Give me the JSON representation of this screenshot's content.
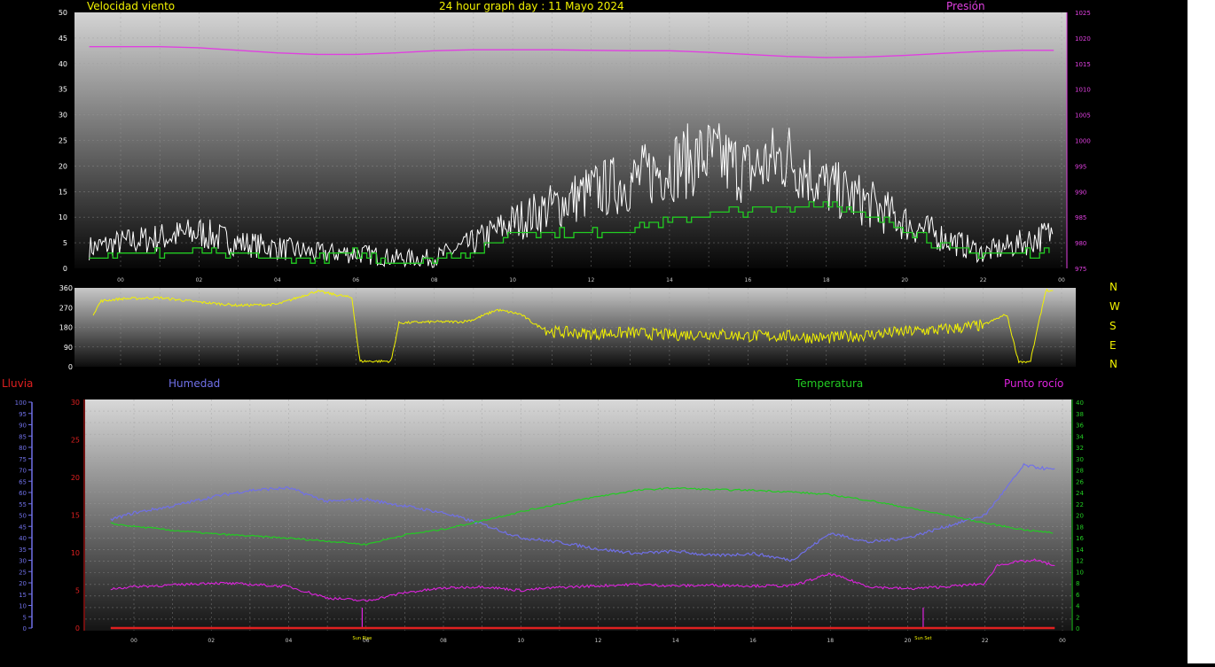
{
  "header": {
    "wind_title": "Velocidad viento",
    "graph_title": "24 hour graph day : 11 Mayo 2024",
    "pressure_title": "Presión"
  },
  "lower_header": {
    "rain_label": "Lluvia",
    "humidity_label": "Humedad",
    "temperature_label": "Temperatura",
    "dewpoint_label": "Punto rocío"
  },
  "cardinals": [
    "N",
    "W",
    "S",
    "E",
    "N"
  ],
  "colors": {
    "wind_gust": "#ffffff",
    "wind_avg": "#22cc22",
    "pressure": "#e040e0",
    "direction": "#f2f200",
    "humidity": "#7070e8",
    "temperature": "#22cc22",
    "dewpoint": "#dd22dd",
    "rain": "#e02020",
    "title": "#f2f200"
  },
  "chart_data": [
    {
      "id": "wind",
      "type": "line",
      "xlabel": "",
      "ylabel": "",
      "x_ticks": [
        "00",
        "02",
        "04",
        "06",
        "08",
        "10",
        "12",
        "14",
        "16",
        "18",
        "20",
        "22",
        "00"
      ],
      "ylim": [
        0,
        50
      ],
      "y_ticks": [
        0,
        5,
        10,
        15,
        20,
        25,
        30,
        35,
        40,
        45,
        50
      ],
      "y2lim": [
        975,
        1025
      ],
      "y2_ticks": [
        975,
        980,
        985,
        990,
        995,
        1000,
        1005,
        1010,
        1015,
        1020,
        1025
      ],
      "grid": true,
      "series": [
        {
          "name": "Velocidad viento",
          "role": "gust",
          "x": [
            -0.8,
            0,
            1,
            2,
            3,
            4,
            5,
            6,
            7,
            8,
            9,
            10,
            11,
            12,
            13,
            14,
            15,
            16,
            17,
            18,
            19,
            20,
            21,
            22,
            23,
            23.8
          ],
          "values": [
            4,
            5,
            6,
            7,
            5,
            4,
            3,
            3,
            2,
            2,
            5,
            9,
            12,
            15,
            17,
            20,
            22,
            19,
            22,
            16,
            13,
            9,
            6,
            3,
            5,
            7
          ]
        },
        {
          "name": "",
          "role": "average",
          "x": [
            -0.8,
            0,
            2,
            4,
            5,
            6,
            7,
            8,
            9,
            10,
            11,
            12,
            13,
            14,
            15,
            16,
            17,
            18,
            19,
            20,
            21,
            22,
            23,
            23.8
          ],
          "values": [
            3,
            3,
            3,
            2,
            2,
            3,
            1,
            2,
            3,
            7,
            7,
            7,
            8,
            9,
            11,
            11,
            12,
            13,
            10,
            8,
            4,
            3,
            3,
            3
          ]
        },
        {
          "name": "Presión",
          "role": "pressure",
          "axis": "y2",
          "x": [
            -0.8,
            1,
            2,
            3,
            4,
            5,
            6,
            7,
            8,
            9,
            10,
            11,
            12,
            13,
            14,
            15,
            16,
            17,
            18,
            19,
            20,
            21,
            22,
            23,
            23.8
          ],
          "values": [
            1018.3,
            1018.3,
            1018.1,
            1017.6,
            1017.1,
            1016.8,
            1016.8,
            1017.1,
            1017.5,
            1017.7,
            1017.7,
            1017.7,
            1017.6,
            1017.5,
            1017.5,
            1017.2,
            1016.8,
            1016.4,
            1016.2,
            1016.3,
            1016.6,
            1017.0,
            1017.4,
            1017.6,
            1017.6
          ]
        }
      ]
    },
    {
      "id": "direction",
      "type": "line",
      "xlabel": "",
      "ylabel": "",
      "ylim": [
        0,
        360
      ],
      "y_ticks": [
        0,
        90,
        180,
        270,
        360
      ],
      "grid": true,
      "series": [
        {
          "name": "",
          "role": "direction",
          "x": [
            -0.7,
            -0.5,
            0,
            1,
            2,
            3,
            4,
            5,
            5.9,
            6.1,
            6.9,
            7.1,
            8,
            8.7,
            9.0,
            9.6,
            10.2,
            10.6,
            11,
            12,
            13,
            14,
            15,
            16,
            17,
            18,
            19,
            20,
            21,
            22,
            22.6,
            22.9,
            23.2,
            23.6,
            23.8
          ],
          "values": [
            240,
            300,
            310,
            315,
            295,
            280,
            285,
            345,
            315,
            25,
            25,
            200,
            205,
            205,
            215,
            260,
            240,
            190,
            160,
            150,
            155,
            145,
            150,
            140,
            140,
            130,
            145,
            160,
            170,
            190,
            240,
            25,
            20,
            350,
            340
          ]
        }
      ]
    },
    {
      "id": "lower",
      "type": "line",
      "xlabel": "",
      "ylabel": "",
      "x_ticks": [
        "00",
        "02",
        "04",
        "06",
        "08",
        "10",
        "12",
        "14",
        "16",
        "18",
        "20",
        "22",
        "00"
      ],
      "ylim": [
        0,
        30
      ],
      "y_ticks": [
        0,
        5,
        10,
        15,
        20,
        25,
        30
      ],
      "y_hum_lim": [
        0,
        100
      ],
      "y_hum_ticks": [
        0,
        5,
        10,
        15,
        20,
        25,
        30,
        35,
        40,
        45,
        50,
        55,
        60,
        65,
        70,
        75,
        80,
        85,
        90,
        95,
        100
      ],
      "y_temp_lim": [
        0,
        40
      ],
      "y_temp_ticks": [
        0,
        2,
        4,
        6,
        8,
        10,
        12,
        14,
        16,
        18,
        20,
        22,
        24,
        26,
        28,
        30,
        32,
        34,
        36,
        38,
        40
      ],
      "grid": true,
      "annotations": [
        {
          "text": "Sun Rise",
          "x": 5.9
        },
        {
          "text": "Sun Set",
          "x": 20.4
        }
      ],
      "series": [
        {
          "name": "Humedad",
          "axis": "hum",
          "x": [
            -0.6,
            0,
            1,
            2,
            3,
            4,
            5,
            6,
            7,
            8,
            9,
            10,
            11,
            12,
            13,
            14,
            15,
            16,
            17,
            18,
            19,
            20,
            21,
            22,
            22.6,
            23,
            23.8
          ],
          "values": [
            48,
            51,
            54,
            58,
            61,
            62,
            56,
            57,
            54,
            51,
            46,
            40,
            38,
            35,
            33,
            34,
            32,
            33,
            30,
            42,
            38,
            40,
            45,
            50,
            63,
            72,
            70
          ]
        },
        {
          "name": "Temperatura",
          "axis": "temp",
          "x": [
            -0.6,
            0,
            1,
            2,
            3,
            4,
            5,
            6,
            7,
            8,
            9,
            10,
            11,
            12,
            13,
            14,
            15,
            16,
            17,
            18,
            19,
            20,
            21,
            22,
            23,
            23.8
          ],
          "values": [
            18.5,
            18,
            17.3,
            16.7,
            16.3,
            15.9,
            15.4,
            14.8,
            16.5,
            17.5,
            19,
            20.6,
            22,
            23.3,
            24.4,
            24.8,
            24.5,
            24.4,
            24.1,
            23.6,
            22.6,
            21.3,
            20.0,
            18.6,
            17.4,
            16.8
          ]
        },
        {
          "name": "Punto rocío",
          "axis": "y",
          "x": [
            -0.6,
            0,
            1,
            2,
            3,
            4,
            5,
            6,
            7,
            8,
            9,
            10,
            11,
            12,
            13,
            14,
            15,
            16,
            17,
            18,
            19,
            20,
            21,
            22,
            22.3,
            22.7,
            23.3,
            23.8
          ],
          "values": [
            5.2,
            5.5,
            5.7,
            6,
            5.8,
            5.5,
            4,
            3.6,
            4.7,
            5.3,
            5.5,
            5,
            5.4,
            5.6,
            5.8,
            5.6,
            5.7,
            5.6,
            5.6,
            7.2,
            5.5,
            5.2,
            5.5,
            5.9,
            8.3,
            8.7,
            9.0,
            8.3
          ]
        },
        {
          "name": "Lluvia",
          "axis": "y",
          "x": [
            -0.6,
            23.8
          ],
          "values": [
            0,
            0
          ]
        }
      ]
    }
  ]
}
